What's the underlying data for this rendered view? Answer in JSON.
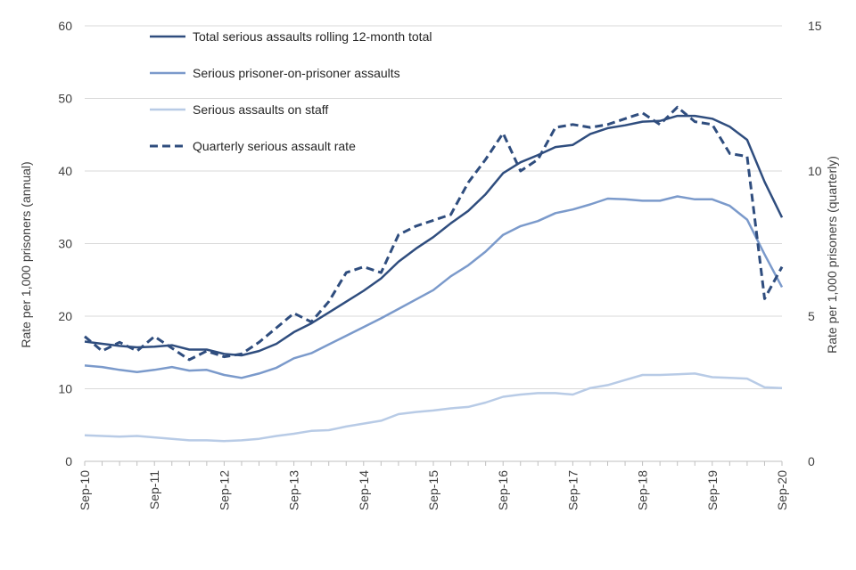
{
  "chart_data": {
    "type": "line",
    "title": "",
    "x_tick_labels": [
      "Sep-10",
      "Sep-11",
      "Sep-12",
      "Sep-13",
      "Sep-14",
      "Sep-15",
      "Sep-16",
      "Sep-17",
      "Sep-18",
      "Sep-19",
      "Sep-20"
    ],
    "xlabel": "",
    "ylabel_left": "Rate per 1,000 prisoners (annual)",
    "ylabel_right": "Rate per 1,000 prisoners (quarterly)",
    "ylim_left": [
      0,
      60
    ],
    "ylim_right": [
      0,
      15
    ],
    "y_ticks_left": [
      "0",
      "10",
      "20",
      "30",
      "40",
      "50",
      "60"
    ],
    "y_ticks_right": [
      "0",
      "5",
      "10",
      "15"
    ],
    "gridlines": true,
    "legend_position": "top-left",
    "series": [
      {
        "name": "Total serious assaults rolling 12-month total",
        "axis": "left",
        "style": "solid",
        "color": "#2f4d7e",
        "values": [
          16.5,
          16.2,
          15.9,
          15.7,
          15.8,
          16.0,
          15.4,
          15.4,
          14.8,
          14.6,
          15.2,
          16.2,
          17.8,
          19.0,
          20.5,
          22.0,
          23.5,
          25.2,
          27.5,
          29.3,
          30.9,
          32.8,
          34.5,
          36.8,
          39.7,
          41.2,
          42.2,
          43.3,
          43.6,
          45.1,
          45.9,
          46.3,
          46.8,
          46.9,
          47.6,
          47.6,
          47.2,
          46.1,
          44.3,
          38.5,
          33.6
        ]
      },
      {
        "name": "Serious prisoner-on-prisoner assaults",
        "axis": "left",
        "style": "solid",
        "color": "#7b9acb",
        "values": [
          13.2,
          13.0,
          12.6,
          12.3,
          12.6,
          13.0,
          12.5,
          12.6,
          11.9,
          11.5,
          12.1,
          12.9,
          14.2,
          14.9,
          16.1,
          17.3,
          18.5,
          19.7,
          21.0,
          22.3,
          23.6,
          25.5,
          27.0,
          28.9,
          31.2,
          32.4,
          33.1,
          34.2,
          34.7,
          35.4,
          36.2,
          36.1,
          35.9,
          35.9,
          36.5,
          36.1,
          36.1,
          35.2,
          33.3,
          28.5,
          24.0
        ]
      },
      {
        "name": "Serious assaults on staff",
        "axis": "left",
        "style": "solid",
        "color": "#b8cbe6",
        "values": [
          3.6,
          3.5,
          3.4,
          3.5,
          3.3,
          3.1,
          2.9,
          2.9,
          2.8,
          2.9,
          3.1,
          3.5,
          3.8,
          4.2,
          4.3,
          4.8,
          5.2,
          5.6,
          6.5,
          6.8,
          7.0,
          7.3,
          7.5,
          8.1,
          8.9,
          9.2,
          9.4,
          9.4,
          9.2,
          10.1,
          10.5,
          11.2,
          11.9,
          11.9,
          12.0,
          12.1,
          11.6,
          11.5,
          11.4,
          10.2,
          10.1
        ]
      },
      {
        "name": "Quarterly serious assault rate",
        "axis": "right",
        "style": "dashed",
        "color": "#2f4d7e",
        "values": [
          4.3,
          3.8,
          4.1,
          3.8,
          4.3,
          3.9,
          3.5,
          3.8,
          3.6,
          3.7,
          4.1,
          4.6,
          5.1,
          4.8,
          5.5,
          6.5,
          6.7,
          6.5,
          7.8,
          8.1,
          8.3,
          8.5,
          9.6,
          10.4,
          11.3,
          10.0,
          10.4,
          11.5,
          11.6,
          11.5,
          11.6,
          11.8,
          12.0,
          11.6,
          12.2,
          11.7,
          11.6,
          10.6,
          10.5,
          5.6,
          6.7
        ]
      }
    ]
  }
}
